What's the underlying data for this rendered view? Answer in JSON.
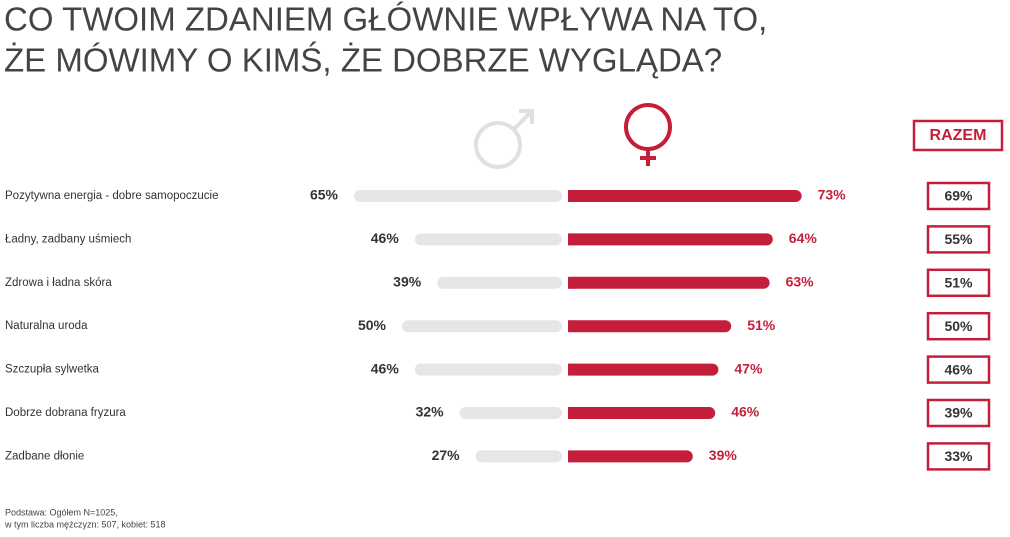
{
  "chart_data": {
    "type": "butterfly",
    "title": [
      "CO TWOIM ZDANIEM GŁÓWNIE WPŁYWA NA TO,",
      "ŻE MÓWIMY O KIMŚ, ŻE DOBRZE WYGLĄDA?"
    ],
    "categories": [
      "Pozytywna energia - dobre samopoczucie",
      "Ładny, zadbany uśmiech",
      "Zdrowa i ładna skóra",
      "Naturalna uroda",
      "Szczupła sylwetka",
      "Dobrze dobrana fryzura",
      "Zadbane dłonie"
    ],
    "series": [
      {
        "color": "#e6e6e6",
        "label_color": "#333333",
        "values": [
          65,
          46,
          39,
          50,
          46,
          32,
          27
        ],
        "value_labels": [
          "65%",
          "46%",
          "39%",
          "50%",
          "46%",
          "32%",
          "27%"
        ]
      },
      {
        "color": "#c41e3a",
        "label_color": "#c41e3a",
        "values": [
          73,
          64,
          63,
          51,
          47,
          46,
          39
        ],
        "value_labels": [
          "73%",
          "64%",
          "63%",
          "51%",
          "47%",
          "46%",
          "39%"
        ]
      }
    ],
    "totals": {
      "name": "RAZEM",
      "color": "#c41e3a",
      "values": [
        69,
        55,
        51,
        50,
        46,
        39,
        33
      ],
      "value_labels": [
        "69%",
        "55%",
        "51%",
        "50%",
        "46%",
        "39%",
        "33%"
      ]
    },
    "footnote": [
      "Podstawa: Ogółem N=1025,",
      "w tym liczba mężczyzn: 507, kobiet: 518"
    ]
  }
}
